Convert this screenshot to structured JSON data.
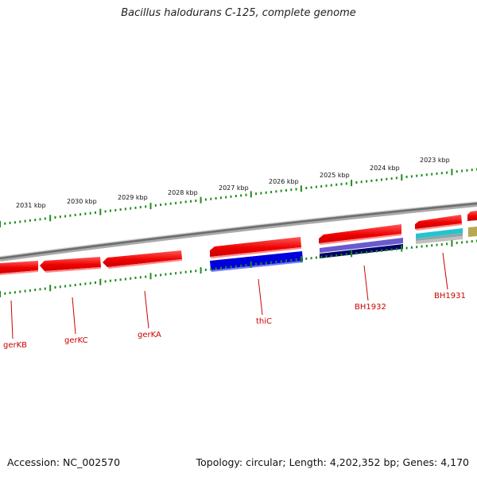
{
  "title": "Bacillus halodurans C-125, complete genome",
  "footer": {
    "accession": "Accession: NC_002570",
    "summary": "Topology: circular; Length: 4,202,352 bp; Genes: 4,170"
  },
  "kbp_labels": [
    "2031 kbp",
    "2030 kbp",
    "2029 kbp",
    "2028 kbp",
    "2027 kbp",
    "2026 kbp",
    "2025 kbp",
    "2024 kbp",
    "2023 kbp"
  ],
  "gene_labels": [
    "gerKB",
    "gerKC",
    "gerKA",
    "thiC",
    "BH1932",
    "BH1931"
  ],
  "colors": {
    "forward_gene": "#ff0000",
    "reverse_gene": "#ff0000",
    "cds_blue": "#0000dd",
    "cds_purple": "#6a5acd",
    "cds_navy": "#000066",
    "cds_cyan": "#22c4d2",
    "cds_olive": "#b8a850",
    "tick": "#1e8c1e",
    "label": "#cc0000",
    "backbone": "#8a8a8a"
  }
}
